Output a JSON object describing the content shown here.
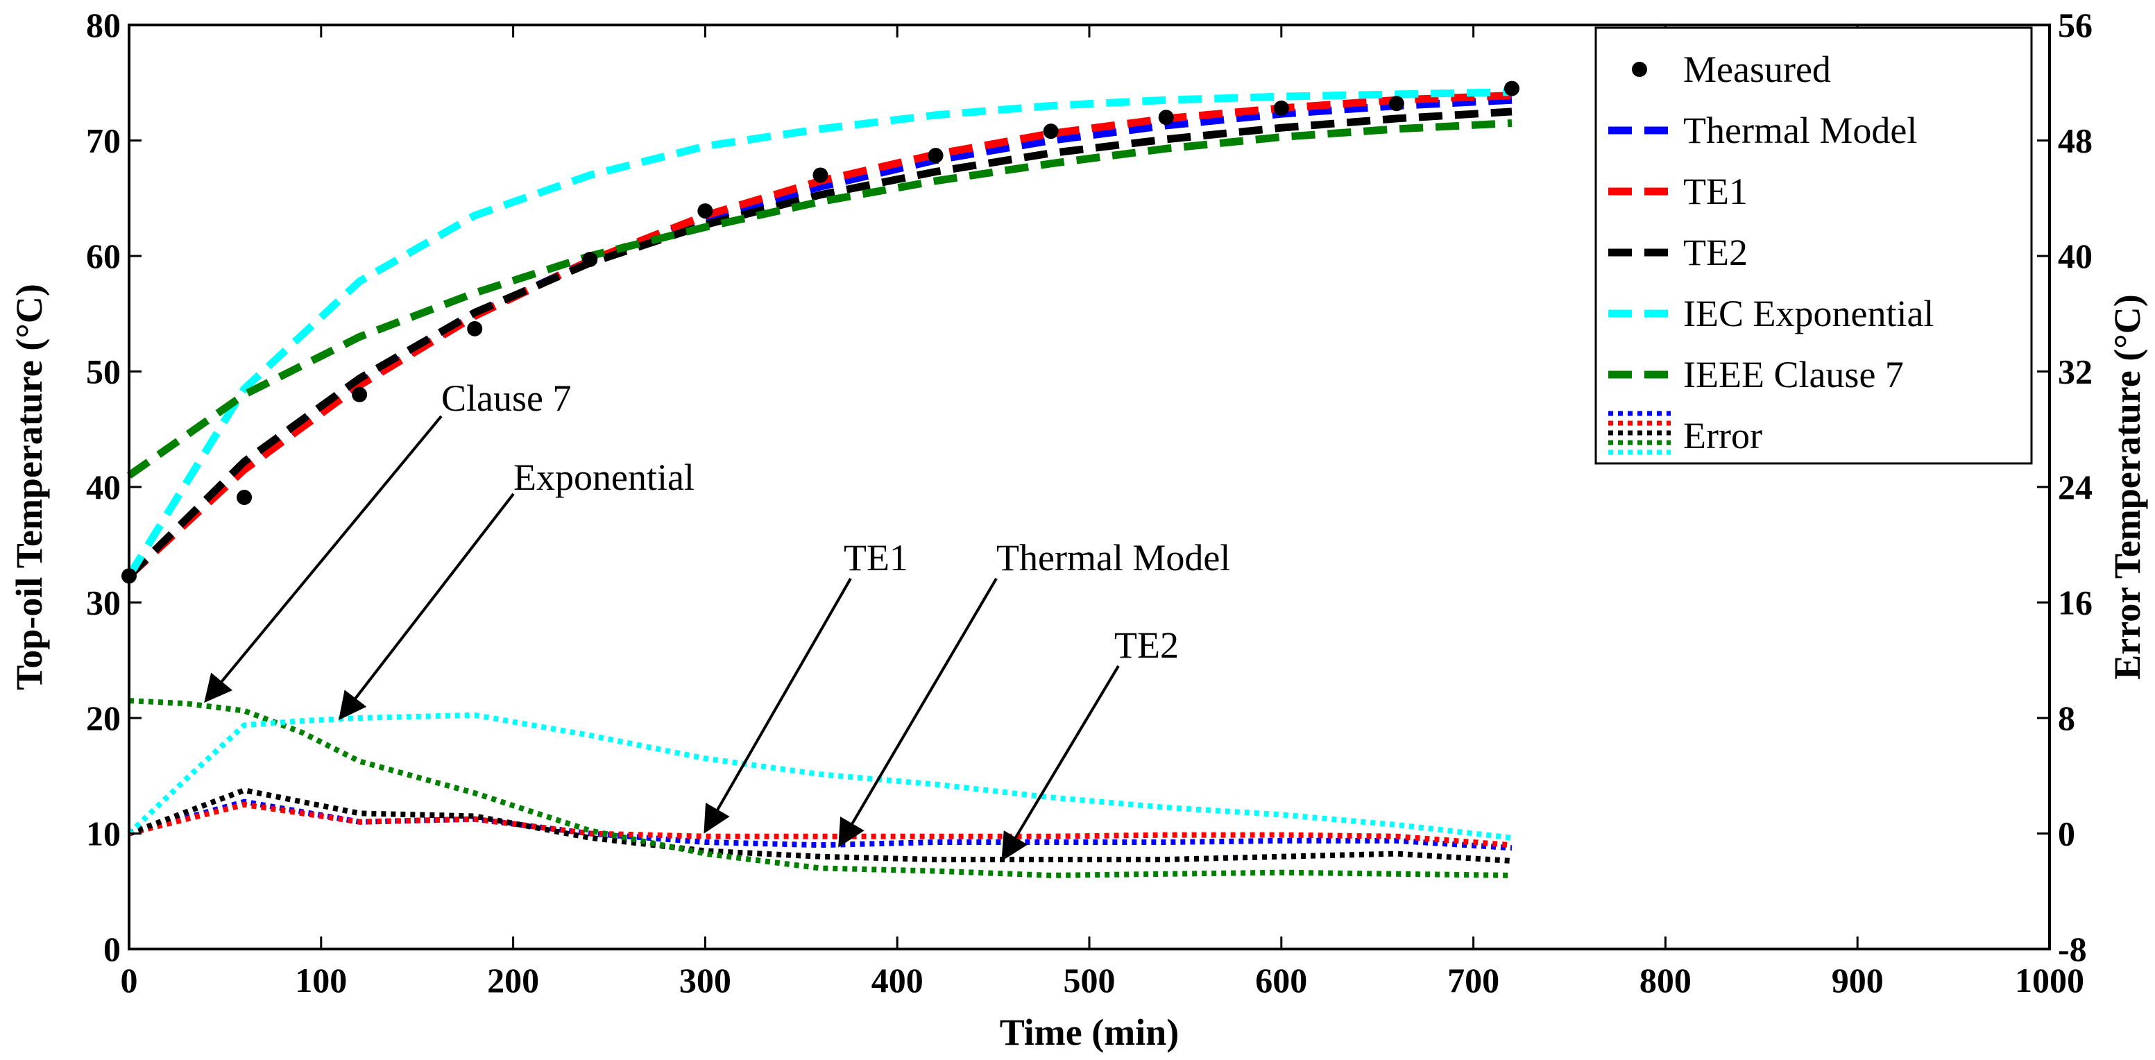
{
  "chart_data": {
    "type": "line",
    "xlabel": "Time (min)",
    "ylabel": "Top-oil Temperature (°C)",
    "y2label": "Error Temperature (°C)",
    "xlim": [
      0,
      1000
    ],
    "ylim": [
      0,
      80
    ],
    "y2lim": [
      -8,
      56
    ],
    "xticks": [
      0,
      100,
      200,
      300,
      400,
      500,
      600,
      700,
      800,
      900,
      1000
    ],
    "yticks": [
      0,
      10,
      20,
      30,
      40,
      50,
      60,
      70,
      80
    ],
    "y2ticks": [
      -8,
      0,
      8,
      16,
      24,
      32,
      40,
      48,
      56
    ],
    "grid": false,
    "legend_position": "top-right",
    "legend": [
      {
        "label": "Measured",
        "style": "marker",
        "colors": [
          "#000000"
        ]
      },
      {
        "label": "Thermal Model",
        "style": "dash",
        "colors": [
          "#0000ff"
        ]
      },
      {
        "label": "TE1",
        "style": "dash",
        "colors": [
          "#ff0000"
        ]
      },
      {
        "label": "TE2",
        "style": "dash",
        "colors": [
          "#000000"
        ]
      },
      {
        "label": "IEC Exponential",
        "style": "dash",
        "colors": [
          "#00ffff"
        ]
      },
      {
        "label": "IEEE Clause 7",
        "style": "dash",
        "colors": [
          "#008000"
        ]
      },
      {
        "label": "Error",
        "style": "dot",
        "colors": [
          "#0000ff",
          "#ff0000",
          "#000000",
          "#008000",
          "#00ffff"
        ]
      }
    ],
    "series": [
      {
        "name": "Measured",
        "color": "#000000",
        "style": "marker",
        "axis": "left",
        "x": [
          0,
          60,
          120,
          180,
          240,
          300,
          360,
          420,
          480,
          540,
          600,
          660,
          720
        ],
        "y": [
          32.3,
          39.1,
          48.0,
          53.7,
          59.7,
          63.9,
          67.0,
          68.7,
          70.8,
          72.0,
          72.8,
          73.2,
          74.5
        ]
      },
      {
        "name": "Thermal Model",
        "color": "#0000ff",
        "style": "dash",
        "axis": "left",
        "x": [
          0,
          60,
          120,
          180,
          240,
          300,
          360,
          420,
          480,
          540,
          600,
          660,
          720
        ],
        "y": [
          32.3,
          41.8,
          49.0,
          54.9,
          59.6,
          63.2,
          66.0,
          68.3,
          70.0,
          71.3,
          72.3,
          73.0,
          73.5
        ]
      },
      {
        "name": "TE1",
        "color": "#ff0000",
        "style": "dash",
        "axis": "left",
        "x": [
          0,
          60,
          120,
          180,
          240,
          300,
          360,
          420,
          480,
          540,
          600,
          660,
          720
        ],
        "y": [
          32.3,
          41.5,
          48.8,
          54.8,
          59.6,
          63.5,
          66.5,
          68.8,
          70.6,
          71.9,
          72.8,
          73.5,
          73.9
        ]
      },
      {
        "name": "TE2",
        "color": "#000000",
        "style": "dash",
        "axis": "left",
        "x": [
          0,
          60,
          120,
          180,
          240,
          300,
          360,
          420,
          480,
          540,
          600,
          660,
          720
        ],
        "y": [
          32.3,
          42.2,
          49.4,
          55.1,
          59.4,
          62.7,
          65.3,
          67.3,
          68.9,
          70.1,
          71.1,
          71.9,
          72.5
        ]
      },
      {
        "name": "IEC Exponential",
        "color": "#00ffff",
        "style": "dash",
        "axis": "left",
        "x": [
          0,
          60,
          120,
          180,
          240,
          300,
          360,
          420,
          480,
          540,
          600,
          660,
          720
        ],
        "y": [
          32.3,
          48.5,
          57.8,
          63.5,
          67.0,
          69.5,
          71.0,
          72.2,
          73.0,
          73.5,
          73.8,
          74.0,
          74.2
        ]
      },
      {
        "name": "IEEE Clause 7",
        "color": "#008000",
        "style": "dash",
        "axis": "left",
        "x": [
          0,
          60,
          120,
          180,
          240,
          300,
          360,
          420,
          480,
          540,
          600,
          660,
          720
        ],
        "y": [
          41.0,
          48.0,
          53.0,
          56.8,
          60.0,
          62.5,
          64.7,
          66.5,
          68.0,
          69.3,
          70.3,
          71.0,
          71.5
        ]
      },
      {
        "name": "Thermal Model error",
        "color": "#0000ff",
        "style": "dot",
        "axis": "right",
        "x": [
          0,
          60,
          120,
          180,
          240,
          300,
          360,
          420,
          480,
          540,
          600,
          660,
          720
        ],
        "y": [
          0.0,
          2.2,
          0.8,
          1.0,
          0.0,
          -0.6,
          -0.8,
          -0.6,
          -0.6,
          -0.6,
          -0.5,
          -0.5,
          -1.0
        ]
      },
      {
        "name": "TE1 error",
        "color": "#ff0000",
        "style": "dot",
        "axis": "right",
        "x": [
          0,
          60,
          120,
          180,
          240,
          300,
          360,
          420,
          480,
          540,
          600,
          660,
          720
        ],
        "y": [
          0.0,
          2.0,
          0.8,
          1.0,
          0.0,
          -0.2,
          -0.2,
          -0.2,
          -0.2,
          -0.1,
          -0.1,
          -0.2,
          -0.8
        ]
      },
      {
        "name": "TE2 error",
        "color": "#000000",
        "style": "dot",
        "axis": "right",
        "x": [
          0,
          60,
          120,
          180,
          240,
          300,
          360,
          420,
          480,
          540,
          600,
          660,
          720
        ],
        "y": [
          0.0,
          3.0,
          1.4,
          1.2,
          -0.3,
          -1.2,
          -1.6,
          -1.8,
          -1.8,
          -1.8,
          -1.6,
          -1.4,
          -1.9
        ]
      },
      {
        "name": "IEEE Clause 7 error",
        "color": "#008000",
        "style": "dot",
        "axis": "right",
        "x": [
          0,
          30,
          60,
          90,
          120,
          180,
          240,
          300,
          360,
          420,
          480,
          540,
          600,
          660,
          720
        ],
        "y": [
          9.2,
          9.0,
          8.5,
          7.0,
          5.0,
          2.8,
          0.2,
          -1.4,
          -2.4,
          -2.6,
          -2.9,
          -2.8,
          -2.7,
          -2.8,
          -2.9
        ]
      },
      {
        "name": "IEC Exponential error",
        "color": "#00ffff",
        "style": "dot",
        "axis": "right",
        "x": [
          0,
          30,
          60,
          90,
          120,
          180,
          240,
          300,
          360,
          420,
          480,
          540,
          600,
          660,
          720
        ],
        "y": [
          0.0,
          3.8,
          7.5,
          7.8,
          8.0,
          8.2,
          6.8,
          5.2,
          4.1,
          3.4,
          2.5,
          1.8,
          1.3,
          0.6,
          -0.3
        ]
      }
    ],
    "annotations": [
      {
        "text": "Clause 7",
        "target": [
          40,
          21.5
        ]
      },
      {
        "text": "Exponential",
        "target": [
          110,
          20.0
        ]
      },
      {
        "text": "TE1",
        "target": [
          300,
          10.2
        ]
      },
      {
        "text": "Thermal Model",
        "target": [
          370,
          9.0
        ]
      },
      {
        "text": "TE2",
        "target": [
          455,
          7.8
        ]
      }
    ]
  }
}
